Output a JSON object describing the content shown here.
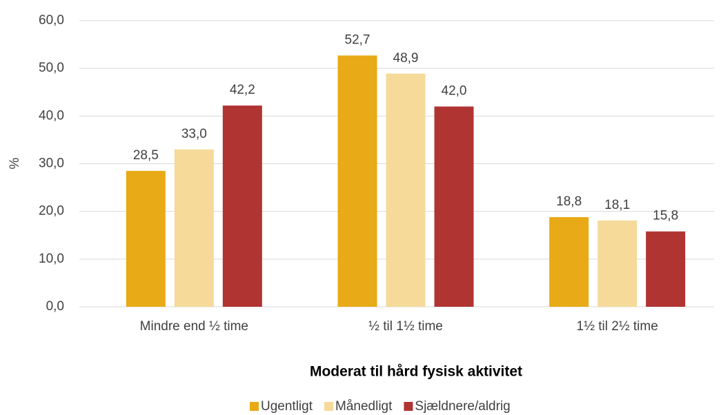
{
  "chart_data": {
    "type": "bar",
    "x_label": "Moderat til hård fysisk aktivitet",
    "y_label": "%",
    "categories": [
      "Mindre end ½ time",
      "½ til 1½ time",
      "1½ til 2½ time"
    ],
    "series": [
      {
        "name": "Ugentligt",
        "color": "#e8aa16",
        "values": [
          28.5,
          52.7,
          18.8
        ],
        "value_labels": [
          "28,5",
          "52,7",
          "18,8"
        ]
      },
      {
        "name": "Månedligt",
        "color": "#f5da9a",
        "values": [
          33.0,
          48.9,
          18.1
        ],
        "value_labels": [
          "33,0",
          "48,9",
          "18,1"
        ]
      },
      {
        "name": "Sjældnere/aldrig",
        "color": "#b03432",
        "values": [
          42.2,
          42.0,
          15.8
        ],
        "value_labels": [
          "42,2",
          "42,0",
          "15,8"
        ]
      }
    ],
    "ylim": [
      0,
      60
    ],
    "yticks": [
      {
        "value": 0,
        "label": "0,0"
      },
      {
        "value": 10,
        "label": "10,0"
      },
      {
        "value": 20,
        "label": "20,0"
      },
      {
        "value": 30,
        "label": "30,0"
      },
      {
        "value": 40,
        "label": "40,0"
      },
      {
        "value": 50,
        "label": "50,0"
      },
      {
        "value": 60,
        "label": "60,0"
      }
    ],
    "grid": true,
    "legend": "bottom"
  }
}
